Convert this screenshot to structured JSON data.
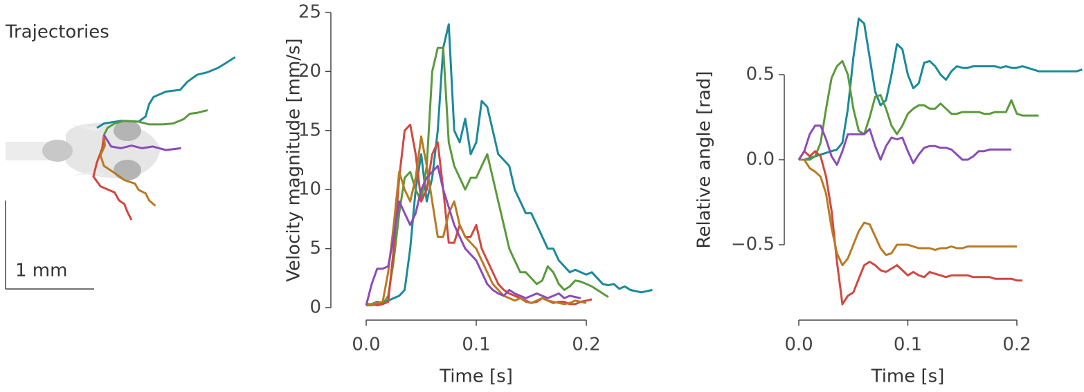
{
  "chart_data": [
    {
      "type": "trajectory",
      "title": "Trajectories",
      "scale_bar": {
        "length": 1,
        "label": "1 mm"
      },
      "series": [
        {
          "color": "#1a8a9a",
          "x": [
            0,
            0.08,
            0.27,
            0.47,
            0.55,
            0.59,
            0.64,
            0.78,
            0.94,
            1.02,
            1.13,
            1.25,
            1.37,
            1.45,
            1.56
          ],
          "y": [
            0,
            0.05,
            0.08,
            0.07,
            0.13,
            0.27,
            0.35,
            0.41,
            0.43,
            0.52,
            0.6,
            0.63,
            0.68,
            0.73,
            0.8
          ]
        },
        {
          "color": "#5a9a3c",
          "x": [
            0.08,
            0.12,
            0.2,
            0.31,
            0.47,
            0.59,
            0.74,
            0.86,
            0.98,
            1.05,
            1.13,
            1.25
          ],
          "y": [
            -0.08,
            0,
            0.05,
            0.08,
            0.07,
            0.04,
            0.04,
            0.05,
            0.1,
            0.16,
            0.17,
            0.2
          ]
        },
        {
          "color": "#d1483f",
          "x": [
            0.08,
            0.06,
            0,
            -0.04,
            0.04,
            0.2,
            0.25,
            0.31,
            0.34,
            0.39
          ],
          "y": [
            -0.08,
            -0.23,
            -0.39,
            -0.55,
            -0.66,
            -0.73,
            -0.82,
            -0.86,
            -0.94,
            -1.04
          ]
        },
        {
          "color": "#b97a23",
          "x": [
            0.08,
            0.09,
            0.04,
            0.08,
            0.2,
            0.31,
            0.43,
            0.47,
            0.55,
            0.59,
            0.66
          ],
          "y": [
            -0.08,
            -0.2,
            -0.31,
            -0.43,
            -0.51,
            -0.59,
            -0.63,
            -0.7,
            -0.74,
            -0.82,
            -0.88
          ]
        },
        {
          "color": "#8a4cb8",
          "x": [
            0.08,
            0.16,
            0.27,
            0.39,
            0.51,
            0.63,
            0.78,
            0.95
          ],
          "y": [
            -0.08,
            -0.21,
            -0.23,
            -0.2,
            -0.23,
            -0.21,
            -0.25,
            -0.23
          ]
        }
      ]
    },
    {
      "type": "line",
      "xlabel": "Time [s]",
      "ylabel": "Velocity magnitude [mm/s]",
      "x": [
        0,
        0.005,
        0.01,
        0.015,
        0.02,
        0.025,
        0.03,
        0.035,
        0.04,
        0.045,
        0.05,
        0.055,
        0.06,
        0.065,
        0.07,
        0.075,
        0.08,
        0.085,
        0.09,
        0.095,
        0.1,
        0.105,
        0.11,
        0.115,
        0.12,
        0.125,
        0.13,
        0.135,
        0.14,
        0.145,
        0.15,
        0.155,
        0.16,
        0.165,
        0.17,
        0.175,
        0.18,
        0.185,
        0.19,
        0.195,
        0.2,
        0.205,
        0.21,
        0.215,
        0.22,
        0.225,
        0.23,
        0.235,
        0.24,
        0.245,
        0.25,
        0.255,
        0.26
      ],
      "xlim": [
        0,
        0.26
      ],
      "xticks": [
        {
          "value": 0,
          "label": "0.0"
        },
        0.1,
        0.2
      ],
      "ylim": [
        0,
        25
      ],
      "yticks": [
        0,
        5,
        10,
        15,
        20,
        25
      ],
      "series": [
        {
          "color": "#1a8a9a",
          "values": [
            0.2,
            0.3,
            0.5,
            0.4,
            0.6,
            0.8,
            1.0,
            1.5,
            5,
            10,
            13,
            9,
            11,
            15,
            22,
            24,
            15,
            14,
            16,
            13,
            14,
            17.5,
            17,
            15,
            13,
            12.5,
            12,
            10,
            9,
            8,
            8,
            7,
            6,
            5,
            5,
            4,
            3.5,
            3,
            3.2,
            3,
            2.8,
            3,
            2.5,
            2,
            1.9,
            2,
            1.6,
            1.8,
            1.5,
            1.4,
            1.3,
            1.4,
            1.5
          ]
        },
        {
          "color": "#5a9a3c",
          "values": [
            0.2,
            0.2,
            0.3,
            0.3,
            1,
            4,
            8,
            11,
            11.5,
            10,
            9,
            12,
            20,
            22,
            22,
            14,
            12,
            11,
            10,
            11,
            11,
            12,
            13,
            11,
            9,
            7,
            5,
            4,
            3,
            3,
            2.5,
            2,
            2.3,
            3.5,
            3,
            2,
            1.5,
            1.8,
            2.3,
            2.2,
            2,
            1.8,
            1.5,
            1.2,
            0.9,
            null,
            null,
            null,
            null,
            null,
            null,
            null,
            null
          ]
        },
        {
          "color": "#d1483f",
          "values": [
            0.3,
            0.3,
            0.2,
            0.3,
            0.5,
            5,
            11,
            15,
            15.5,
            13,
            9,
            10,
            13,
            14,
            10,
            5.5,
            5.5,
            7,
            6,
            6,
            7,
            5,
            4,
            3,
            2,
            1.5,
            1.2,
            1.0,
            0.8,
            0.6,
            0.4,
            0.5,
            0.8,
            0.6,
            0.4,
            0.5,
            0.5,
            0.3,
            0.3,
            0.5,
            0.6,
            0.7,
            null,
            null,
            null,
            null,
            null,
            null,
            null,
            null,
            null,
            null,
            null
          ]
        },
        {
          "color": "#b97a23",
          "values": [
            0.2,
            0.3,
            0.4,
            0.5,
            3,
            7,
            11.5,
            10,
            9,
            11,
            14.5,
            12,
            9,
            6,
            6,
            8,
            9,
            7,
            6,
            5.5,
            5,
            4,
            3,
            2,
            1.5,
            1.0,
            0.8,
            0.6,
            0.8,
            0.5,
            0.4,
            0.6,
            0.8,
            0.6,
            0.5,
            0.4,
            0.3,
            0.4,
            0.6,
            0.5,
            0.4,
            null,
            null,
            null,
            null,
            null,
            null,
            null,
            null,
            null,
            null,
            null,
            null
          ]
        },
        {
          "color": "#8a4cb8",
          "values": [
            0.2,
            2,
            3.3,
            3.3,
            3.5,
            6,
            9,
            8,
            7,
            8,
            10,
            11,
            11.5,
            12,
            10,
            8.5,
            7,
            6,
            5,
            4.5,
            4,
            3,
            2,
            1.5,
            1.2,
            1.0,
            1.5,
            1.2,
            1.0,
            0.8,
            1.0,
            1.2,
            1.0,
            0.8,
            1.0,
            1.2,
            0.8,
            1.0,
            0.9,
            0.8,
            null,
            null,
            null,
            null,
            null,
            null,
            null,
            null,
            null,
            null,
            null,
            null,
            null
          ]
        }
      ]
    },
    {
      "type": "line",
      "xlabel": "Time [s]",
      "ylabel": "Relative angle [rad]",
      "x": [
        0,
        0.005,
        0.01,
        0.015,
        0.02,
        0.025,
        0.03,
        0.035,
        0.04,
        0.045,
        0.05,
        0.055,
        0.06,
        0.065,
        0.07,
        0.075,
        0.08,
        0.085,
        0.09,
        0.095,
        0.1,
        0.105,
        0.11,
        0.115,
        0.12,
        0.125,
        0.13,
        0.135,
        0.14,
        0.145,
        0.15,
        0.155,
        0.16,
        0.165,
        0.17,
        0.175,
        0.18,
        0.185,
        0.19,
        0.195,
        0.2,
        0.205,
        0.21,
        0.215,
        0.22,
        0.225,
        0.23,
        0.235,
        0.24,
        0.245,
        0.25,
        0.255,
        0.26
      ],
      "xlim": [
        0,
        0.26
      ],
      "xticks": [
        {
          "value": 0,
          "label": "0.0"
        },
        0.1,
        0.2
      ],
      "ylim": [
        -0.86,
        0.87
      ],
      "yticks": [
        {
          "value": -0.5,
          "label": "−0.5"
        },
        {
          "value": 0,
          "label": "0.0"
        },
        0.5
      ],
      "series": [
        {
          "color": "#1a8a9a",
          "values": [
            0,
            0,
            0.01,
            0.02,
            0.03,
            0.04,
            0.05,
            0.06,
            0.1,
            0.3,
            0.6,
            0.83,
            0.8,
            0.6,
            0.4,
            0.32,
            0.35,
            0.5,
            0.68,
            0.65,
            0.5,
            0.42,
            0.45,
            0.57,
            0.58,
            0.55,
            0.5,
            0.47,
            0.52,
            0.55,
            0.54,
            0.54,
            0.55,
            0.55,
            0.55,
            0.55,
            0.55,
            0.54,
            0.55,
            0.54,
            0.54,
            0.55,
            0.54,
            0.53,
            0.52,
            0.52,
            0.52,
            0.52,
            0.52,
            0.52,
            0.52,
            0.52,
            0.53
          ]
        },
        {
          "color": "#5a9a3c",
          "values": [
            0,
            0,
            0,
            0.02,
            0.1,
            0.3,
            0.48,
            0.55,
            0.58,
            0.5,
            0.3,
            0.17,
            0.15,
            0.25,
            0.37,
            0.38,
            0.3,
            0.2,
            0.15,
            0.2,
            0.27,
            0.3,
            0.32,
            0.32,
            0.3,
            0.3,
            0.33,
            0.3,
            0.27,
            0.27,
            0.28,
            0.28,
            0.28,
            0.28,
            0.27,
            0.27,
            0.28,
            0.28,
            0.28,
            0.35,
            0.27,
            0.26,
            0.26,
            0.26,
            0.26,
            null,
            null,
            null,
            null,
            null,
            null,
            null,
            null
          ]
        },
        {
          "color": "#d1483f",
          "values": [
            0,
            0.05,
            0.02,
            0.05,
            0.02,
            -0.1,
            -0.3,
            -0.6,
            -0.85,
            -0.8,
            -0.78,
            -0.7,
            -0.62,
            -0.6,
            -0.62,
            -0.65,
            -0.66,
            -0.64,
            -0.62,
            -0.65,
            -0.68,
            -0.66,
            -0.68,
            -0.69,
            -0.66,
            -0.67,
            -0.68,
            -0.69,
            -0.68,
            -0.68,
            -0.68,
            -0.68,
            -0.69,
            -0.69,
            -0.69,
            -0.69,
            -0.7,
            -0.7,
            -0.7,
            -0.7,
            -0.71,
            -0.71,
            null,
            null,
            null,
            null,
            null,
            null,
            null,
            null,
            null,
            null,
            null
          ]
        },
        {
          "color": "#b97a23",
          "values": [
            0,
            0,
            -0.05,
            -0.07,
            -0.1,
            -0.2,
            -0.4,
            -0.55,
            -0.62,
            -0.58,
            -0.5,
            -0.42,
            -0.37,
            -0.38,
            -0.45,
            -0.52,
            -0.56,
            -0.55,
            -0.5,
            -0.5,
            -0.5,
            -0.51,
            -0.52,
            -0.52,
            -0.52,
            -0.53,
            -0.52,
            -0.52,
            -0.51,
            -0.52,
            -0.52,
            -0.51,
            -0.51,
            -0.51,
            -0.51,
            -0.51,
            -0.51,
            -0.51,
            -0.51,
            -0.51,
            -0.51,
            null,
            null,
            null,
            null,
            null,
            null,
            null,
            null,
            null,
            null,
            null,
            null
          ]
        },
        {
          "color": "#8a4cb8",
          "values": [
            0,
            0.05,
            0.15,
            0.2,
            0.2,
            0.12,
            0.02,
            -0.03,
            0.05,
            0.15,
            0.15,
            0.15,
            0.15,
            0.18,
            0.08,
            0,
            0.08,
            0.13,
            0.12,
            0.13,
            0.05,
            -0.02,
            0.03,
            0.07,
            0.08,
            0.08,
            0.07,
            0.07,
            0.06,
            0.03,
            0,
            0,
            0.02,
            0.05,
            0.05,
            0.06,
            0.06,
            0.06,
            0.06,
            0.06,
            null,
            null,
            null,
            null,
            null,
            null,
            null,
            null,
            null,
            null,
            null,
            null,
            null
          ]
        }
      ]
    }
  ]
}
